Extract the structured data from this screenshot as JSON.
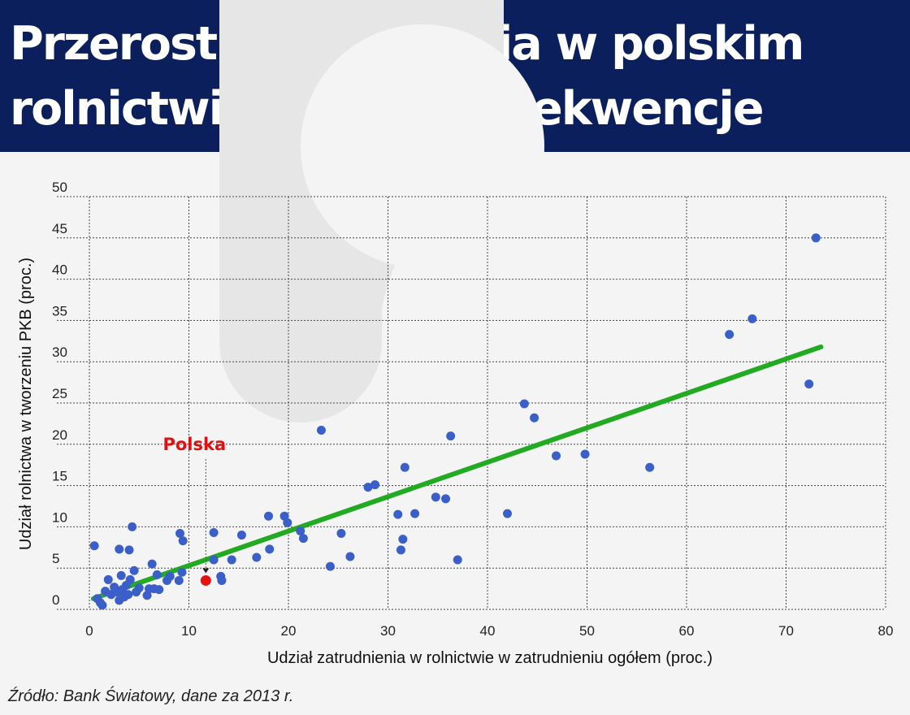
{
  "header": {
    "title": "Przerost zatrudnienia w polskim rolnictwie i jego konsekwencje"
  },
  "source": "Źródło: Bank Światowy, dane za 2013 r.",
  "colors": {
    "header_bg": "#0a1f5c",
    "point": "#3a5fc8",
    "highlight": "#e81010",
    "trend": "#22aa22"
  },
  "chart_data": {
    "type": "scatter",
    "title": "",
    "xlabel": "Udział zatrudnienia w rolnictwie w zatrudnieniu ogółem (proc.)",
    "ylabel": "Udział rolnictwa w tworzeniu PKB (proc.)",
    "xlim": [
      0,
      80
    ],
    "ylim": [
      0,
      50
    ],
    "xticks": [
      0,
      10,
      20,
      30,
      40,
      50,
      60,
      70,
      80
    ],
    "yticks": [
      0,
      5,
      10,
      15,
      20,
      25,
      30,
      35,
      40,
      45,
      50
    ],
    "grid": true,
    "points": [
      {
        "x": 0.5,
        "y": 7.7
      },
      {
        "x": 0.8,
        "y": 1.3
      },
      {
        "x": 1.1,
        "y": 0.8
      },
      {
        "x": 1.3,
        "y": 0.5
      },
      {
        "x": 1.6,
        "y": 2.2
      },
      {
        "x": 1.9,
        "y": 3.6
      },
      {
        "x": 2.2,
        "y": 1.8
      },
      {
        "x": 2.5,
        "y": 2.7
      },
      {
        "x": 2.8,
        "y": 2.1
      },
      {
        "x": 3.0,
        "y": 7.3
      },
      {
        "x": 3.0,
        "y": 1.1
      },
      {
        "x": 3.2,
        "y": 4.1
      },
      {
        "x": 3.3,
        "y": 2.4
      },
      {
        "x": 3.5,
        "y": 1.5
      },
      {
        "x": 3.7,
        "y": 2.9
      },
      {
        "x": 3.9,
        "y": 1.8
      },
      {
        "x": 4.0,
        "y": 7.2
      },
      {
        "x": 4.1,
        "y": 3.6
      },
      {
        "x": 4.3,
        "y": 10.0
      },
      {
        "x": 4.5,
        "y": 4.7
      },
      {
        "x": 4.7,
        "y": 2.1
      },
      {
        "x": 5.0,
        "y": 2.6
      },
      {
        "x": 5.8,
        "y": 1.7
      },
      {
        "x": 6.0,
        "y": 2.5
      },
      {
        "x": 6.3,
        "y": 5.5
      },
      {
        "x": 6.5,
        "y": 2.5
      },
      {
        "x": 6.8,
        "y": 4.2
      },
      {
        "x": 7.0,
        "y": 2.4
      },
      {
        "x": 7.8,
        "y": 3.5
      },
      {
        "x": 8.1,
        "y": 4.0
      },
      {
        "x": 9.0,
        "y": 3.5
      },
      {
        "x": 9.1,
        "y": 9.2
      },
      {
        "x": 9.4,
        "y": 8.3
      },
      {
        "x": 9.3,
        "y": 4.5
      },
      {
        "x": 12.5,
        "y": 9.3
      },
      {
        "x": 12.5,
        "y": 6.0
      },
      {
        "x": 13.2,
        "y": 4.0
      },
      {
        "x": 13.3,
        "y": 3.5
      },
      {
        "x": 14.3,
        "y": 6.0
      },
      {
        "x": 15.3,
        "y": 9.0
      },
      {
        "x": 16.8,
        "y": 6.3
      },
      {
        "x": 18.0,
        "y": 11.3
      },
      {
        "x": 18.1,
        "y": 7.3
      },
      {
        "x": 19.6,
        "y": 11.3
      },
      {
        "x": 19.9,
        "y": 10.5
      },
      {
        "x": 21.2,
        "y": 9.5
      },
      {
        "x": 21.5,
        "y": 8.6
      },
      {
        "x": 23.3,
        "y": 21.7
      },
      {
        "x": 24.2,
        "y": 5.2
      },
      {
        "x": 25.3,
        "y": 9.2
      },
      {
        "x": 26.2,
        "y": 6.4
      },
      {
        "x": 28.0,
        "y": 14.8
      },
      {
        "x": 28.7,
        "y": 15.1
      },
      {
        "x": 31.0,
        "y": 11.5
      },
      {
        "x": 31.3,
        "y": 7.2
      },
      {
        "x": 31.5,
        "y": 8.5
      },
      {
        "x": 31.7,
        "y": 17.2
      },
      {
        "x": 32.7,
        "y": 11.6
      },
      {
        "x": 34.8,
        "y": 13.6
      },
      {
        "x": 35.8,
        "y": 13.4
      },
      {
        "x": 36.3,
        "y": 21.0
      },
      {
        "x": 37.0,
        "y": 6.0
      },
      {
        "x": 42.0,
        "y": 11.6
      },
      {
        "x": 43.7,
        "y": 24.9
      },
      {
        "x": 44.7,
        "y": 23.2
      },
      {
        "x": 46.9,
        "y": 18.6
      },
      {
        "x": 49.8,
        "y": 18.8
      },
      {
        "x": 56.3,
        "y": 17.2
      },
      {
        "x": 64.3,
        "y": 33.3
      },
      {
        "x": 66.6,
        "y": 35.2
      },
      {
        "x": 72.3,
        "y": 27.3
      },
      {
        "x": 73.0,
        "y": 45.0
      }
    ],
    "highlight": {
      "label": "Polska",
      "x": 11.7,
      "y": 3.5
    },
    "trendline": {
      "x": [
        0.4,
        73.5
      ],
      "y": [
        1.3,
        31.8
      ]
    }
  }
}
